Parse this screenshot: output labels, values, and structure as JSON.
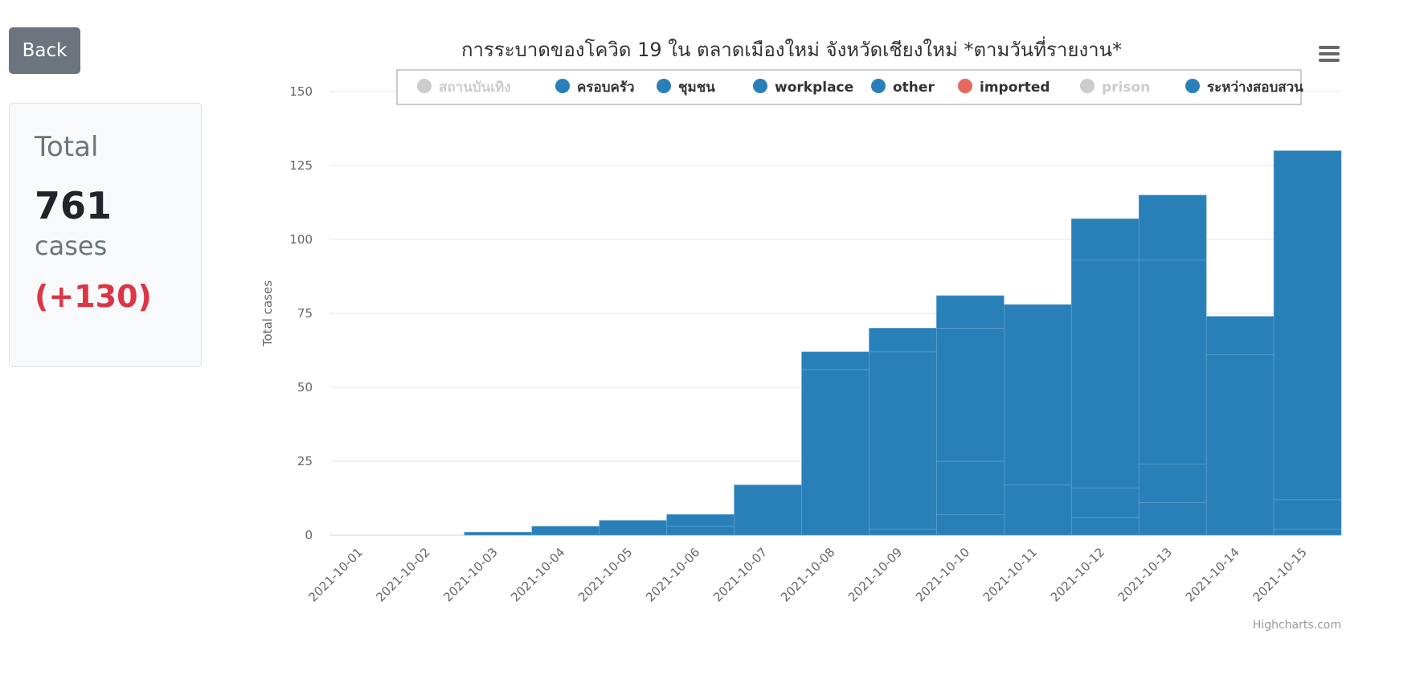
{
  "back_label": "Back",
  "summary": {
    "title": "Total",
    "value": "761",
    "unit": "cases",
    "delta": "(+130)"
  },
  "menu_icon": "hamburger-menu-icon",
  "credits": "Highcharts.com",
  "chart_data": {
    "type": "bar",
    "stacked": true,
    "title": "การระบาดของโควิด 19 ใน ตลาดเมืองใหม่ จังหวัดเชียงใหม่ *ตามวันที่รายงาน*",
    "ylabel": "Total cases",
    "xlabel": "",
    "ylim": [
      0,
      150
    ],
    "yticks": [
      0,
      25,
      50,
      75,
      100,
      125,
      150
    ],
    "grid": true,
    "legend_position": "top",
    "categories": [
      "2021-10-01",
      "2021-10-02",
      "2021-10-03",
      "2021-10-04",
      "2021-10-05",
      "2021-10-06",
      "2021-10-07",
      "2021-10-08",
      "2021-10-09",
      "2021-10-10",
      "2021-10-11",
      "2021-10-12",
      "2021-10-13",
      "2021-10-14",
      "2021-10-15"
    ],
    "legend": [
      {
        "name": "สถานบันเทิง",
        "color": "#cccccc",
        "visible": false
      },
      {
        "name": "ครอบครัว",
        "color": "#2980b9",
        "visible": true
      },
      {
        "name": "ชุมชน",
        "color": "#2980b9",
        "visible": true
      },
      {
        "name": "workplace",
        "color": "#2980b9",
        "visible": true
      },
      {
        "name": "other",
        "color": "#2980b9",
        "visible": true
      },
      {
        "name": "imported",
        "color": "#e8685f",
        "visible": true
      },
      {
        "name": "prison",
        "color": "#cccccc",
        "visible": false
      },
      {
        "name": "ระหว่างสอบสวน",
        "color": "#2980b9",
        "visible": true
      }
    ],
    "series": [
      {
        "name": "ครอบครัว",
        "color": "#2980b9",
        "values": [
          0,
          0,
          0,
          0,
          0,
          0,
          0,
          0,
          0,
          0,
          0,
          6,
          11,
          0,
          0
        ]
      },
      {
        "name": "ชุมชน",
        "color": "#2980b9",
        "values": [
          0,
          0,
          0,
          0,
          0,
          0,
          0,
          0,
          2,
          7,
          0,
          10,
          13,
          0,
          2
        ]
      },
      {
        "name": "workplace",
        "color": "#2980b9",
        "values": [
          0,
          0,
          0,
          0,
          0,
          0,
          0,
          0,
          0,
          18,
          17,
          0,
          0,
          0,
          10
        ]
      },
      {
        "name": "other",
        "color": "#2980b9",
        "values": [
          0,
          0,
          0,
          0,
          0,
          3,
          0,
          56,
          60,
          45,
          0,
          77,
          69,
          61,
          0
        ]
      },
      {
        "name": "ระหว่างสอบสวน",
        "color": "#2980b9",
        "values": [
          0,
          0,
          1,
          3,
          5,
          4,
          17,
          6,
          8,
          11,
          61,
          14,
          22,
          13,
          118
        ]
      }
    ],
    "bar_color": "#2980b9"
  }
}
